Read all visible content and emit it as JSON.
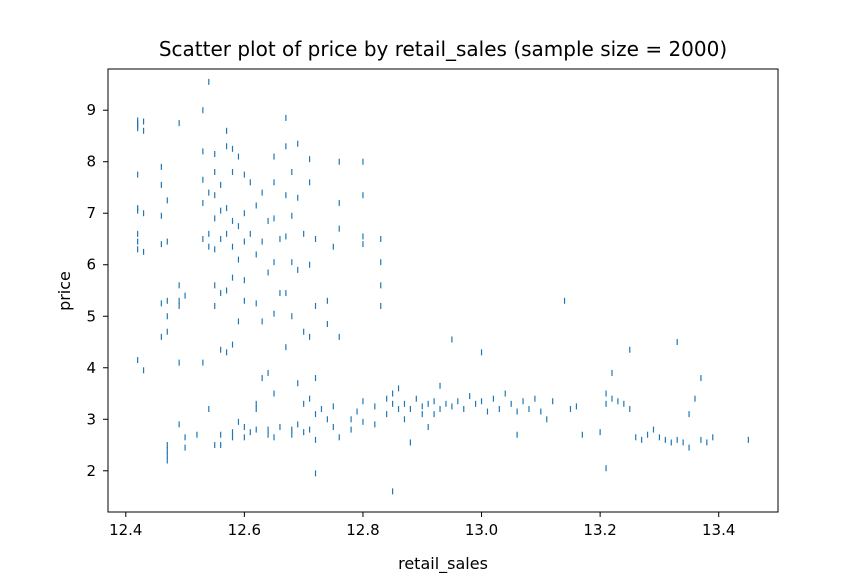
{
  "chart_data": {
    "type": "scatter",
    "title": "Scatter plot of price by retail_sales (sample size = 2000)",
    "xlabel": "retail_sales",
    "ylabel": "price",
    "xlim": [
      12.37,
      13.5
    ],
    "ylim": [
      1.2,
      9.8
    ],
    "xticks": [
      12.4,
      12.6,
      12.8,
      13.0,
      13.2,
      13.4
    ],
    "xtick_labels": [
      "12.4",
      "12.6",
      "12.8",
      "13.0",
      "13.2",
      "13.4"
    ],
    "yticks": [
      2,
      3,
      4,
      5,
      6,
      7,
      8,
      9
    ],
    "ytick_labels": [
      "2",
      "3",
      "4",
      "5",
      "6",
      "7",
      "8",
      "9"
    ],
    "marker": "|",
    "color": "#1f77b4",
    "grid": false,
    "series": [
      {
        "values": [
          [
            12.42,
            8.8
          ],
          [
            12.42,
            8.75
          ],
          [
            12.42,
            8.7
          ],
          [
            12.42,
            8.65
          ],
          [
            12.43,
            8.78
          ],
          [
            12.43,
            8.6
          ],
          [
            12.42,
            7.75
          ],
          [
            12.42,
            7.1
          ],
          [
            12.42,
            7.05
          ],
          [
            12.43,
            7.0
          ],
          [
            12.42,
            6.6
          ],
          [
            12.42,
            6.45
          ],
          [
            12.42,
            6.3
          ],
          [
            12.43,
            6.25
          ],
          [
            12.42,
            4.15
          ],
          [
            12.43,
            3.95
          ],
          [
            12.46,
            7.9
          ],
          [
            12.46,
            7.55
          ],
          [
            12.47,
            7.25
          ],
          [
            12.46,
            6.95
          ],
          [
            12.47,
            6.45
          ],
          [
            12.46,
            6.4
          ],
          [
            12.47,
            5.3
          ],
          [
            12.46,
            5.25
          ],
          [
            12.47,
            5.0
          ],
          [
            12.47,
            4.7
          ],
          [
            12.46,
            4.6
          ],
          [
            12.47,
            2.5
          ],
          [
            12.47,
            2.4
          ],
          [
            12.47,
            2.3
          ],
          [
            12.47,
            2.2
          ],
          [
            12.49,
            8.75
          ],
          [
            12.49,
            5.6
          ],
          [
            12.5,
            5.4
          ],
          [
            12.49,
            5.3
          ],
          [
            12.49,
            5.2
          ],
          [
            12.49,
            4.1
          ],
          [
            12.49,
            2.9
          ],
          [
            12.5,
            2.65
          ],
          [
            12.5,
            2.45
          ],
          [
            12.52,
            2.7
          ],
          [
            12.53,
            8.2
          ],
          [
            12.53,
            7.65
          ],
          [
            12.54,
            7.4
          ],
          [
            12.53,
            7.2
          ],
          [
            12.54,
            6.6
          ],
          [
            12.53,
            6.5
          ],
          [
            12.54,
            6.35
          ],
          [
            12.53,
            9.0
          ],
          [
            12.54,
            9.55
          ],
          [
            12.53,
            4.1
          ],
          [
            12.54,
            3.2
          ],
          [
            12.55,
            8.15
          ],
          [
            12.55,
            7.8
          ],
          [
            12.56,
            7.55
          ],
          [
            12.55,
            7.35
          ],
          [
            12.56,
            7.05
          ],
          [
            12.55,
            6.9
          ],
          [
            12.56,
            6.5
          ],
          [
            12.55,
            6.3
          ],
          [
            12.55,
            5.6
          ],
          [
            12.56,
            5.45
          ],
          [
            12.55,
            5.2
          ],
          [
            12.56,
            4.35
          ],
          [
            12.55,
            2.5
          ],
          [
            12.56,
            2.5
          ],
          [
            12.56,
            2.7
          ],
          [
            12.57,
            8.6
          ],
          [
            12.57,
            8.3
          ],
          [
            12.58,
            8.25
          ],
          [
            12.58,
            7.8
          ],
          [
            12.57,
            7.1
          ],
          [
            12.58,
            6.85
          ],
          [
            12.57,
            6.6
          ],
          [
            12.58,
            6.35
          ],
          [
            12.58,
            5.75
          ],
          [
            12.57,
            5.5
          ],
          [
            12.58,
            4.45
          ],
          [
            12.57,
            4.3
          ],
          [
            12.58,
            2.75
          ],
          [
            12.58,
            2.65
          ],
          [
            12.59,
            8.1
          ],
          [
            12.6,
            7.75
          ],
          [
            12.6,
            7.0
          ],
          [
            12.59,
            6.75
          ],
          [
            12.6,
            6.45
          ],
          [
            12.59,
            6.1
          ],
          [
            12.6,
            5.7
          ],
          [
            12.6,
            5.3
          ],
          [
            12.59,
            4.9
          ],
          [
            12.59,
            2.95
          ],
          [
            12.6,
            2.85
          ],
          [
            12.6,
            2.65
          ],
          [
            12.61,
            2.75
          ],
          [
            12.61,
            7.6
          ],
          [
            12.61,
            6.6
          ],
          [
            12.62,
            7.15
          ],
          [
            12.62,
            6.2
          ],
          [
            12.62,
            5.25
          ],
          [
            12.62,
            3.3
          ],
          [
            12.62,
            3.2
          ],
          [
            12.62,
            2.8
          ],
          [
            12.63,
            7.4
          ],
          [
            12.63,
            6.45
          ],
          [
            12.64,
            6.85
          ],
          [
            12.64,
            5.85
          ],
          [
            12.63,
            4.9
          ],
          [
            12.63,
            3.8
          ],
          [
            12.64,
            3.9
          ],
          [
            12.64,
            2.8
          ],
          [
            12.64,
            2.7
          ],
          [
            12.65,
            8.1
          ],
          [
            12.65,
            7.6
          ],
          [
            12.65,
            6.9
          ],
          [
            12.66,
            6.5
          ],
          [
            12.65,
            6.05
          ],
          [
            12.66,
            5.45
          ],
          [
            12.65,
            5.05
          ],
          [
            12.65,
            3.5
          ],
          [
            12.65,
            2.65
          ],
          [
            12.66,
            2.85
          ],
          [
            12.67,
            8.85
          ],
          [
            12.67,
            8.3
          ],
          [
            12.68,
            7.8
          ],
          [
            12.67,
            7.35
          ],
          [
            12.68,
            6.95
          ],
          [
            12.67,
            6.55
          ],
          [
            12.68,
            6.05
          ],
          [
            12.67,
            5.45
          ],
          [
            12.68,
            5.0
          ],
          [
            12.67,
            4.4
          ],
          [
            12.68,
            2.8
          ],
          [
            12.68,
            2.7
          ],
          [
            12.69,
            8.35
          ],
          [
            12.69,
            7.3
          ],
          [
            12.7,
            6.6
          ],
          [
            12.69,
            5.9
          ],
          [
            12.7,
            4.7
          ],
          [
            12.69,
            3.7
          ],
          [
            12.7,
            3.3
          ],
          [
            12.69,
            2.9
          ],
          [
            12.7,
            2.75
          ],
          [
            12.71,
            8.05
          ],
          [
            12.71,
            7.6
          ],
          [
            12.72,
            6.5
          ],
          [
            12.71,
            6.0
          ],
          [
            12.72,
            5.2
          ],
          [
            12.71,
            4.6
          ],
          [
            12.72,
            3.8
          ],
          [
            12.71,
            3.4
          ],
          [
            12.72,
            3.1
          ],
          [
            12.71,
            2.8
          ],
          [
            12.72,
            2.6
          ],
          [
            12.72,
            1.95
          ],
          [
            12.73,
            3.2
          ],
          [
            12.74,
            5.3
          ],
          [
            12.74,
            4.85
          ],
          [
            12.74,
            3.0
          ],
          [
            12.75,
            3.25
          ],
          [
            12.75,
            2.85
          ],
          [
            12.76,
            8.0
          ],
          [
            12.76,
            7.2
          ],
          [
            12.76,
            6.7
          ],
          [
            12.75,
            6.35
          ],
          [
            12.76,
            4.6
          ],
          [
            12.76,
            2.65
          ],
          [
            12.78,
            3.0
          ],
          [
            12.78,
            2.8
          ],
          [
            12.79,
            3.15
          ],
          [
            12.8,
            3.35
          ],
          [
            12.8,
            2.95
          ],
          [
            12.8,
            8.0
          ],
          [
            12.8,
            7.35
          ],
          [
            12.8,
            6.55
          ],
          [
            12.8,
            6.4
          ],
          [
            12.82,
            3.25
          ],
          [
            12.82,
            2.9
          ],
          [
            12.83,
            6.5
          ],
          [
            12.83,
            6.05
          ],
          [
            12.83,
            5.6
          ],
          [
            12.83,
            5.2
          ],
          [
            12.84,
            3.4
          ],
          [
            12.84,
            3.1
          ],
          [
            12.85,
            3.5
          ],
          [
            12.85,
            3.3
          ],
          [
            12.85,
            1.6
          ],
          [
            12.86,
            3.2
          ],
          [
            12.86,
            3.6
          ],
          [
            12.87,
            3.3
          ],
          [
            12.87,
            3.0
          ],
          [
            12.88,
            3.2
          ],
          [
            12.88,
            2.55
          ],
          [
            12.89,
            3.4
          ],
          [
            12.9,
            3.25
          ],
          [
            12.9,
            3.1
          ],
          [
            12.91,
            3.3
          ],
          [
            12.91,
            2.85
          ],
          [
            12.92,
            3.35
          ],
          [
            12.92,
            3.1
          ],
          [
            12.93,
            3.65
          ],
          [
            12.93,
            3.2
          ],
          [
            12.94,
            3.3
          ],
          [
            12.95,
            4.55
          ],
          [
            12.95,
            3.25
          ],
          [
            12.96,
            3.35
          ],
          [
            12.97,
            3.2
          ],
          [
            12.98,
            3.45
          ],
          [
            12.99,
            3.3
          ],
          [
            13.0,
            4.3
          ],
          [
            13.0,
            3.35
          ],
          [
            13.01,
            3.15
          ],
          [
            13.02,
            3.4
          ],
          [
            13.03,
            3.2
          ],
          [
            13.04,
            3.5
          ],
          [
            13.05,
            3.3
          ],
          [
            13.06,
            3.15
          ],
          [
            13.06,
            2.7
          ],
          [
            13.07,
            3.35
          ],
          [
            13.08,
            3.2
          ],
          [
            13.09,
            3.4
          ],
          [
            13.1,
            3.15
          ],
          [
            13.11,
            3.0
          ],
          [
            13.12,
            3.35
          ],
          [
            13.14,
            5.3
          ],
          [
            13.15,
            3.2
          ],
          [
            13.16,
            3.25
          ],
          [
            13.17,
            2.7
          ],
          [
            13.2,
            2.75
          ],
          [
            13.21,
            3.5
          ],
          [
            13.21,
            3.3
          ],
          [
            13.21,
            2.05
          ],
          [
            13.22,
            3.4
          ],
          [
            13.22,
            3.9
          ],
          [
            13.23,
            3.35
          ],
          [
            13.24,
            3.3
          ],
          [
            13.25,
            4.35
          ],
          [
            13.25,
            3.2
          ],
          [
            13.26,
            2.65
          ],
          [
            13.27,
            2.6
          ],
          [
            13.28,
            2.7
          ],
          [
            13.29,
            2.8
          ],
          [
            13.3,
            2.65
          ],
          [
            13.31,
            2.6
          ],
          [
            13.32,
            2.55
          ],
          [
            13.33,
            4.5
          ],
          [
            13.33,
            2.6
          ],
          [
            13.34,
            2.55
          ],
          [
            13.35,
            2.45
          ],
          [
            13.35,
            3.1
          ],
          [
            13.36,
            3.4
          ],
          [
            13.37,
            3.8
          ],
          [
            13.37,
            2.6
          ],
          [
            13.38,
            2.55
          ],
          [
            13.39,
            2.65
          ],
          [
            13.45,
            2.6
          ]
        ]
      }
    ]
  }
}
